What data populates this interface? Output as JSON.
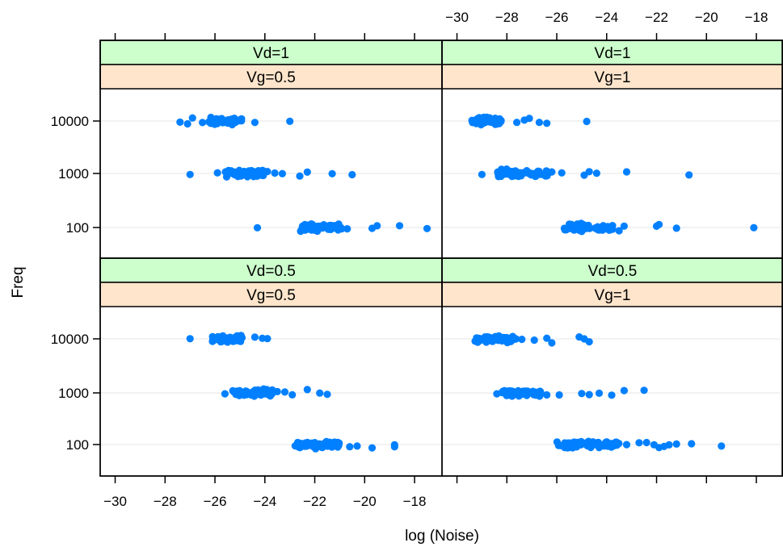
{
  "chart_data": {
    "type": "scatter",
    "xlabel": "log (Noise)",
    "ylabel": "Freq",
    "xlim": [
      -30.6,
      -16.9
    ],
    "x_ticks": [
      -30,
      -28,
      -26,
      -24,
      -22,
      -20,
      -18
    ],
    "x_tick_labels": [
      "−30",
      "−28",
      "−26",
      "−24",
      "−22",
      "−20",
      "−18"
    ],
    "y_categories": [
      "100",
      "1000",
      "10000"
    ],
    "grid": true,
    "colors": {
      "point": "#0080ff",
      "strip_top": "#ccffcc",
      "strip_bottom": "#ffe5cc",
      "gridline": "#e6e6e6",
      "border": "#000000"
    },
    "panels": [
      {
        "strip_top": "Vd=1",
        "strip_bottom": "Vg=0.5",
        "clusters": [
          {
            "freq": "10000",
            "x_min": -26.3,
            "x_max": -24.9,
            "n": 60,
            "extra": [
              -27.4,
              -27.1,
              -26.9,
              -26.5,
              -24.4,
              -23.0
            ]
          },
          {
            "freq": "1000",
            "x_min": -25.6,
            "x_max": -24.0,
            "n": 65,
            "extra": [
              -27.0,
              -25.9,
              -23.9,
              -23.6,
              -23.3,
              -22.6,
              -22.3,
              -21.3,
              -20.5
            ]
          },
          {
            "freq": "100",
            "x_min": -22.6,
            "x_max": -20.9,
            "n": 65,
            "extra": [
              -24.3,
              -20.7,
              -19.7,
              -19.5,
              -18.6,
              -17.5
            ]
          }
        ]
      },
      {
        "strip_top": "Vd=1",
        "strip_bottom": "Vg=1",
        "clusters": [
          {
            "freq": "10000",
            "x_min": -29.4,
            "x_max": -28.2,
            "n": 60,
            "extra": [
              -27.6,
              -27.3,
              -27.1,
              -26.7,
              -26.4,
              -24.8
            ]
          },
          {
            "freq": "1000",
            "x_min": -28.4,
            "x_max": -26.3,
            "n": 65,
            "extra": [
              -29.0,
              -26.2,
              -25.8,
              -24.9,
              -24.7,
              -24.4,
              -23.2,
              -20.7
            ]
          },
          {
            "freq": "100",
            "x_min": -25.7,
            "x_max": -23.7,
            "n": 65,
            "extra": [
              -23.5,
              -23.3,
              -22.0,
              -21.9,
              -21.2,
              -18.1
            ]
          }
        ]
      },
      {
        "strip_top": "Vd=0.5",
        "strip_bottom": "Vg=0.5",
        "clusters": [
          {
            "freq": "10000",
            "x_min": -26.1,
            "x_max": -24.9,
            "n": 60,
            "extra": [
              -27.0,
              -24.4,
              -24.1,
              -23.9
            ]
          },
          {
            "freq": "1000",
            "x_min": -25.3,
            "x_max": -23.7,
            "n": 65,
            "extra": [
              -25.6,
              -23.5,
              -23.2,
              -22.9,
              -22.3,
              -21.8,
              -21.5
            ]
          },
          {
            "freq": "100",
            "x_min": -22.8,
            "x_max": -21.0,
            "n": 65,
            "extra": [
              -20.6,
              -20.3,
              -19.7,
              -18.8,
              -18.8
            ]
          }
        ]
      },
      {
        "strip_top": "Vd=0.5",
        "strip_bottom": "Vg=1",
        "clusters": [
          {
            "freq": "10000",
            "x_min": -29.3,
            "x_max": -27.6,
            "n": 60,
            "extra": [
              -27.4,
              -26.9,
              -26.4,
              -26.2,
              -25.1,
              -24.9,
              -24.7
            ]
          },
          {
            "freq": "1000",
            "x_min": -28.2,
            "x_max": -26.6,
            "n": 65,
            "extra": [
              -28.4,
              -26.4,
              -25.9,
              -25.0,
              -24.7,
              -24.3,
              -23.8,
              -23.3,
              -22.5
            ]
          },
          {
            "freq": "100",
            "x_min": -26.0,
            "x_max": -23.5,
            "n": 70,
            "extra": [
              -23.2,
              -22.7,
              -22.4,
              -22.1,
              -21.9,
              -21.7,
              -21.5,
              -21.2,
              -20.6,
              -19.4
            ]
          }
        ]
      }
    ]
  }
}
